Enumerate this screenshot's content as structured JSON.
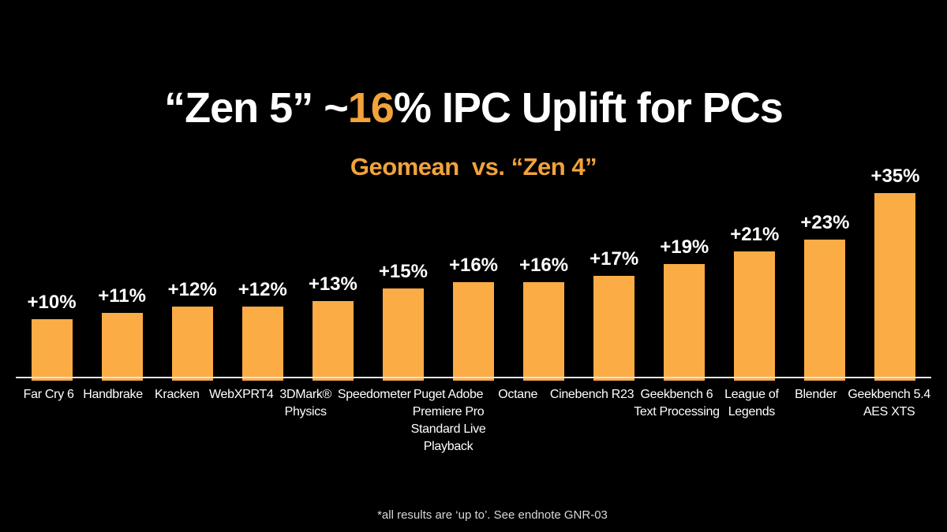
{
  "slide": {
    "title": {
      "prefix": "“Zen 5” ~",
      "highlight": "16",
      "suffix": "% IPC Uplift for PCs"
    },
    "subtitle": "Geomean  vs. “Zen 4”",
    "footnote": "*all results are ‘up to’. See endnote GNR-03"
  },
  "colors": {
    "background": "#000000",
    "bar": "#FBAC45",
    "accent_text": "#F2A33C",
    "title_text": "#FFFFFF",
    "label_text": "#FFFFFF",
    "axis_line": "#E6E6E6",
    "footnote_text": "#D8D8D8"
  },
  "chart_data": {
    "type": "bar",
    "title": "“Zen 5” ~16% IPC Uplift for PCs",
    "subtitle": "Geomean vs. “Zen 4”",
    "categories": [
      "Far Cry 6",
      "Handbrake",
      "Kracken",
      "WebXPRT4",
      "3DMark®\nPhysics",
      "Speedometer",
      "Puget Adobe\nPremiere Pro\nStandard Live\nPlayback",
      "Octane",
      "Cinebench R23",
      "Geekbench 6\nText Processing",
      "League of\nLegends",
      "Blender",
      "Geekbench 5.4\nAES XTS"
    ],
    "values": [
      10,
      11,
      12,
      12,
      13,
      15,
      16,
      16,
      17,
      19,
      21,
      23,
      35
    ],
    "value_labels": [
      "+10%",
      "+11%",
      "+12%",
      "+12%",
      "+13%",
      "+15%",
      "+16%",
      "+16%",
      "+17%",
      "+19%",
      "+21%",
      "+23%",
      "+35%"
    ],
    "value_suffix": "%",
    "xlabel": "",
    "ylabel": "",
    "ylim": [
      0,
      36
    ],
    "grid": false,
    "legend": false,
    "data_labels_position": "above-bars"
  }
}
